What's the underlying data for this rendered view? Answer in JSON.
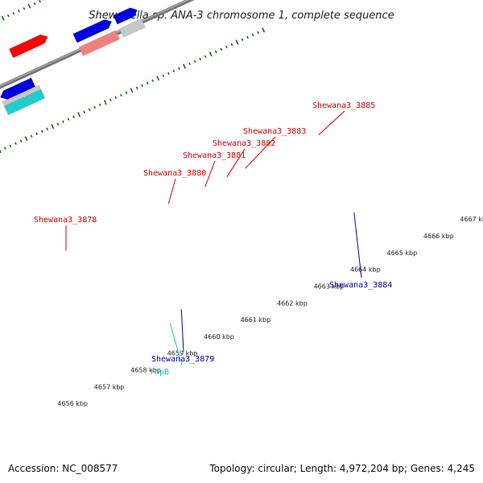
{
  "title": "Shewanella sp. ANA-3 chromosome 1, complete sequence",
  "footer": {
    "accession": "Accession: NC_008577",
    "topology": "Topology: circular; Length: 4,972,204 bp; Genes: 4,245"
  },
  "colors": {
    "red": "#ff0000",
    "blue": "#0000dd",
    "grey": "#c8c8c8",
    "cyan": "#22cccc",
    "magenta": "#ee22aa",
    "pink": "#ee8080",
    "darkgrey": "#555555",
    "lightblue": "#44bbee",
    "tick": "#006600",
    "label_red": "#dd0000",
    "label_blue": "#0000aa",
    "label_cyan": "#22bbdd"
  },
  "kbp_ticks": [
    {
      "label": "4656 kbp",
      "pos": 4656
    },
    {
      "label": "4657 kbp",
      "pos": 4657
    },
    {
      "label": "4658 kbp",
      "pos": 4658
    },
    {
      "label": "4659 kbp",
      "pos": 4659
    },
    {
      "label": "4660 kbp",
      "pos": 4660
    },
    {
      "label": "4661 kbp",
      "pos": 4661
    },
    {
      "label": "4662 kbp",
      "pos": 4662
    },
    {
      "label": "4663 kbp",
      "pos": 4663
    },
    {
      "label": "4664 kbp",
      "pos": 4664
    },
    {
      "label": "4665 kbp",
      "pos": 4665
    },
    {
      "label": "4666 kbp",
      "pos": 4666
    },
    {
      "label": "4667 kbp",
      "pos": 4667
    }
  ],
  "gene_labels": [
    {
      "text": "Shewana3_3878",
      "color": "label_red"
    },
    {
      "text": "Shewana3_3880",
      "color": "label_red"
    },
    {
      "text": "Shewana3_3881",
      "color": "label_red"
    },
    {
      "text": "Shewana3_3882",
      "color": "label_red"
    },
    {
      "text": "Shewana3_3883",
      "color": "label_red"
    },
    {
      "text": "Shewana3_3885",
      "color": "label_red"
    },
    {
      "text": "Shewana3_3884",
      "color": "label_blue"
    },
    {
      "text": "Shewana3_3879",
      "color": "label_blue"
    },
    {
      "text": "rnpB",
      "color": "label_cyan"
    }
  ]
}
